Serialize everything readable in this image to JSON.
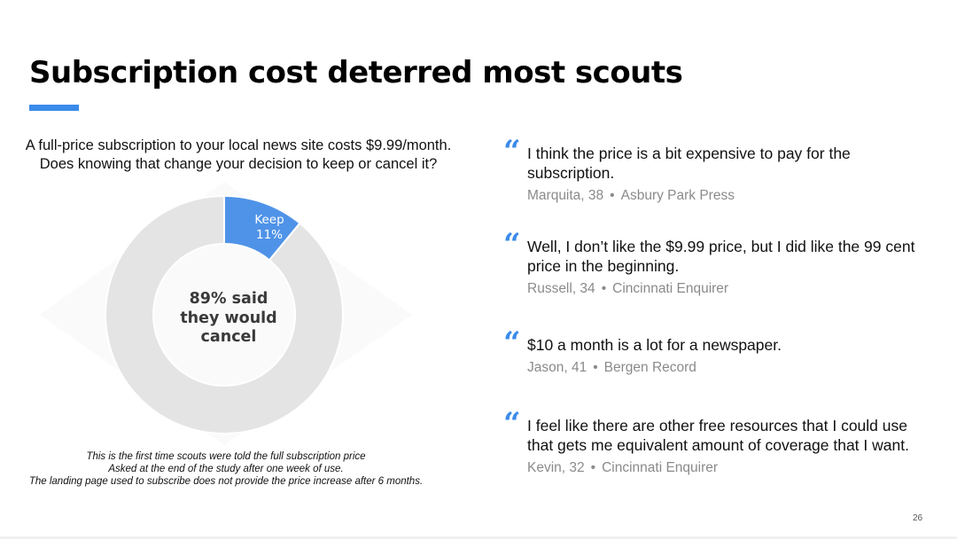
{
  "slide": {
    "title": "Subscription cost deterred most scouts",
    "accent_color": "#3b8bea",
    "page_number": "26"
  },
  "question": {
    "line1": "A full-price subscription to your local news site costs $9.99/month.",
    "line2": "Does knowing that change your decision to keep or cancel it?"
  },
  "chart_data": {
    "type": "pie",
    "variant": "donut",
    "categories": [
      "Keep",
      "Cancel"
    ],
    "values": [
      11,
      89
    ],
    "colors": [
      "#4f93e8",
      "#e4e4e4"
    ],
    "data_labels": {
      "keep_name": "Keep",
      "keep_value": "11%"
    },
    "center_label": [
      "89% said",
      "they would",
      "cancel"
    ]
  },
  "notes": [
    "This is the first time scouts were told the full subscription price",
    "Asked at the end of the study after one week of use.",
    "The landing page used to subscribe does not provide the price increase after 6 months."
  ],
  "quotes": [
    {
      "text": "I think the price is a bit expensive to pay for the subscription.",
      "name": "Marquita, 38",
      "source": "Asbury Park Press"
    },
    {
      "text": "Well, I don’t like the $9.99 price, but I did like the 99 cent price in the beginning.",
      "name": "Russell, 34",
      "source": "Cincinnati Enquirer"
    },
    {
      "text": "$10 a month is a lot for a newspaper.",
      "name": "Jason, 41",
      "source": "Bergen Record"
    },
    {
      "text": "I feel like there are other free resources that I could use that gets me equivalent amount of coverage that I want.",
      "name": "Kevin, 32",
      "source": "Cincinnati Enquirer"
    }
  ],
  "quote_mark": "“",
  "separator": "•"
}
